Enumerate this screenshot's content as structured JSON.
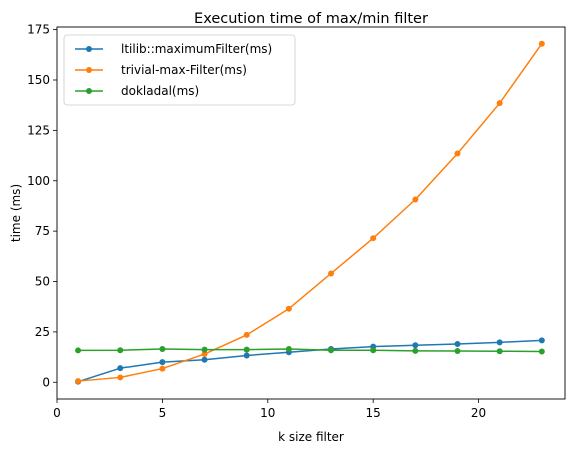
{
  "chart_data": {
    "type": "line",
    "title": "Execution time of max/min filter",
    "xlabel": "k size filter",
    "ylabel": "time (ms)",
    "xlim": [
      0,
      24.1
    ],
    "ylim": [
      -8.3,
      176.3
    ],
    "xticks": [
      0,
      5,
      10,
      15,
      20
    ],
    "yticks": [
      0,
      25,
      50,
      75,
      100,
      125,
      150,
      175
    ],
    "grid": false,
    "legend_position": "upper-left",
    "x": [
      1,
      3,
      5,
      7,
      9,
      11,
      13,
      15,
      17,
      19,
      21,
      23
    ],
    "series": [
      {
        "name": "ltilib::maximumFilter(ms)",
        "color": "#1f77b4",
        "values": [
          0.3,
          7.0,
          10.0,
          11.2,
          13.3,
          14.9,
          16.5,
          17.7,
          18.4,
          19.0,
          19.8,
          20.8
        ]
      },
      {
        "name": "trivial-max-Filter(ms)",
        "color": "#ff7f0e",
        "values": [
          0.6,
          2.4,
          6.8,
          14.0,
          23.5,
          36.5,
          54.0,
          71.5,
          90.7,
          113.5,
          138.5,
          168.0
        ]
      },
      {
        "name": "dokladal(ms)",
        "color": "#2ca02c",
        "values": [
          15.8,
          15.9,
          16.5,
          16.2,
          16.2,
          16.5,
          15.9,
          15.9,
          15.6,
          15.5,
          15.4,
          15.3
        ]
      }
    ]
  }
}
